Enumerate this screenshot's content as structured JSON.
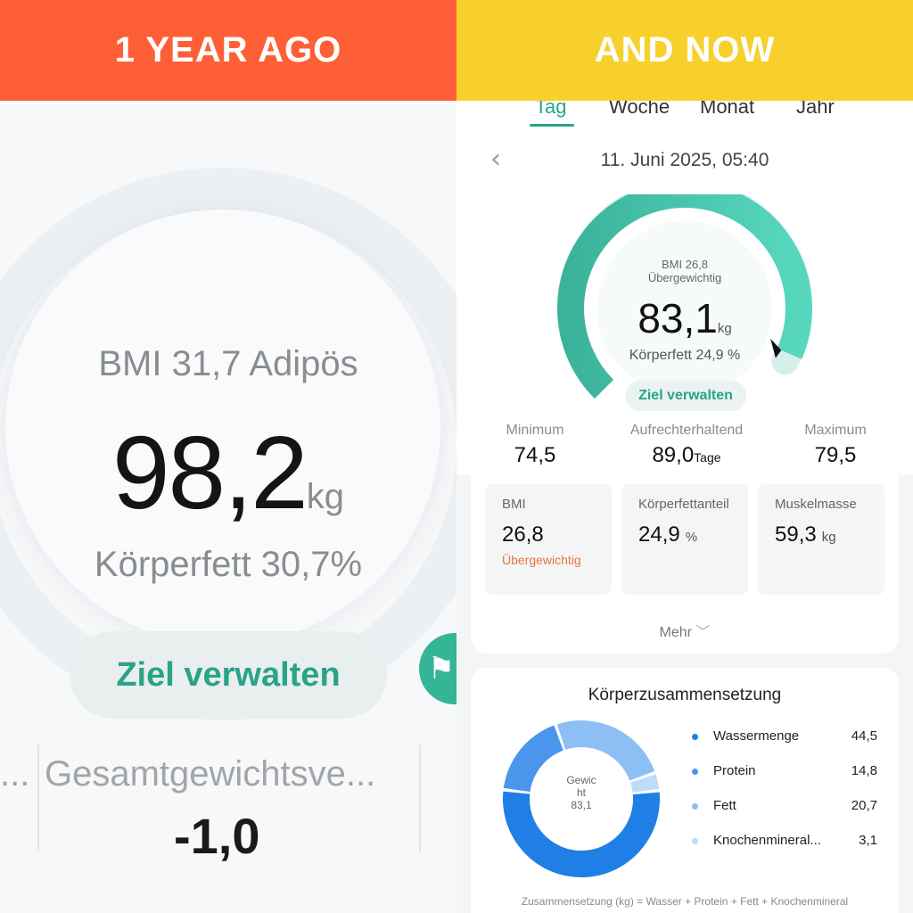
{
  "banners": {
    "left": "1 YEAR AGO",
    "right": "AND NOW"
  },
  "left": {
    "bmi": "BMI 31,7 Adipös",
    "weight": "98,2",
    "weight_unit": "kg",
    "body_fat": "Körperfett 30,7%",
    "goal_button": "Ziel verwalten",
    "stat_prefix": "...",
    "stat_label": "Gesamtgewichtsve...",
    "stat_value": "-1,0"
  },
  "right": {
    "tabs": [
      "Tag",
      "Woche",
      "Monat",
      "Jahr"
    ],
    "active_tab": "Tag",
    "date": "11. Juni 2025, 05:40",
    "gauge": {
      "bmi": "BMI 26,8",
      "classification": "Übergewichtig",
      "weight": "83,1",
      "unit": "kg",
      "body_fat": "Körperfett 24,9 %",
      "goal_button": "Ziel verwalten",
      "progress": 0.92
    },
    "stats": [
      {
        "label": "Minimum",
        "value": "74,5",
        "unit": ""
      },
      {
        "label": "Aufrechterhaltend",
        "value": "89,0",
        "unit": "Tage"
      },
      {
        "label": "Maximum",
        "value": "79,5",
        "unit": ""
      }
    ],
    "metrics": [
      {
        "label": "BMI",
        "value": "26,8",
        "unit": "",
        "status": "Übergewichtig"
      },
      {
        "label": "Körperfettanteil",
        "value": "24,9",
        "unit": "%",
        "status": ""
      },
      {
        "label": "Muskelmasse",
        "value": "59,3",
        "unit": "kg",
        "status": ""
      }
    ],
    "more": "Mehr",
    "composition": {
      "title": "Körperzusammensetzung",
      "center_line1": "Gewic",
      "center_line2": "ht",
      "center_value": "83,1",
      "items": [
        {
          "name": "Wassermenge",
          "value": "44,5",
          "color": "#1f7fe6"
        },
        {
          "name": "Protein",
          "value": "14,8",
          "color": "#4a96ec"
        },
        {
          "name": "Fett",
          "value": "20,7",
          "color": "#8cc0f5"
        },
        {
          "name": "Knochenmineral...",
          "value": "3,1",
          "color": "#bcdcfa"
        }
      ],
      "formula": "Zusammensetzung (kg) = Wasser + Protein + Fett + Knochenmineral"
    }
  },
  "colors": {
    "left_banner": "#ff5f36",
    "right_banner": "#f8d02c",
    "accent": "#2aa389",
    "warning": "#e8773c"
  }
}
